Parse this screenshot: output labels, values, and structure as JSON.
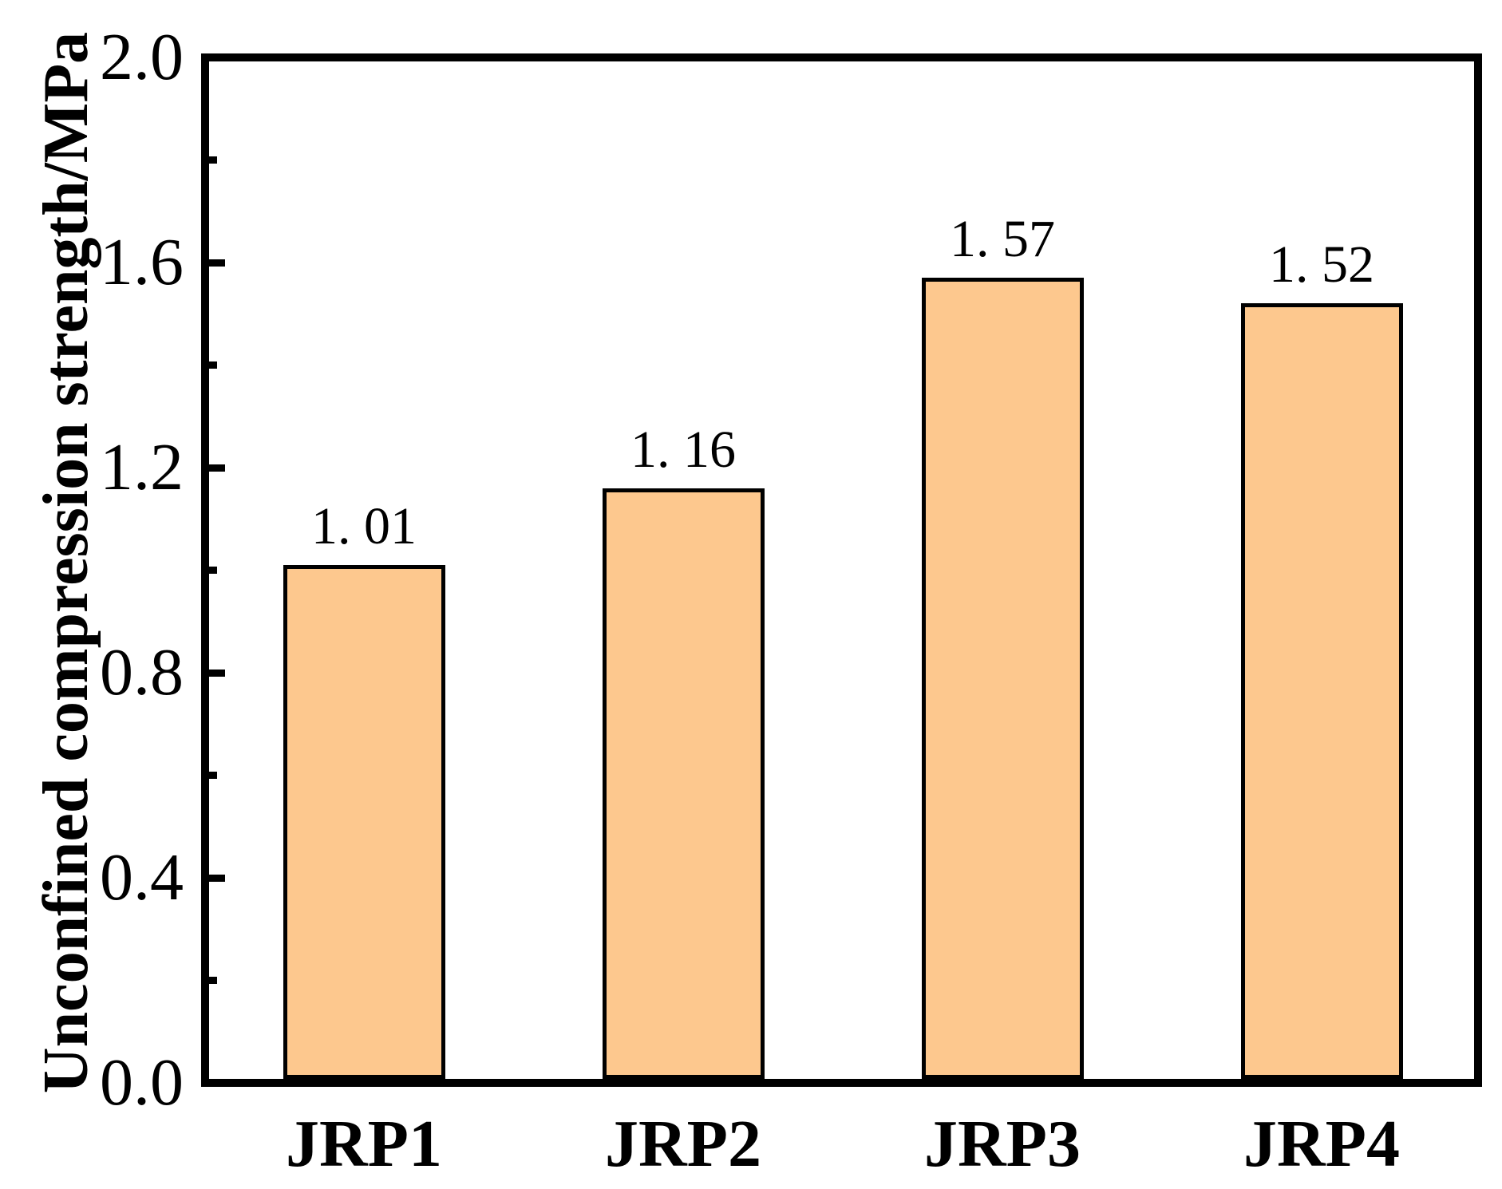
{
  "chart_data": {
    "type": "bar",
    "title": "",
    "categories": [
      "JRP1",
      "JRP2",
      "JRP3",
      "JRP4"
    ],
    "values": [
      1.01,
      1.16,
      1.57,
      1.52
    ],
    "bar_value_labels": [
      "1. 01",
      "1. 16",
      "1. 57",
      "1. 52"
    ],
    "xlabel": "",
    "ylabel": "Unconfined compression strength/MPa",
    "ylim": [
      0.0,
      2.0
    ],
    "ytick_values": [
      0.0,
      0.4,
      0.8,
      1.2,
      1.6,
      2.0
    ],
    "ytick_labels": [
      "0.0",
      "0.4",
      "0.8",
      "1.2",
      "1.6",
      "2.0"
    ],
    "minor_ytick_values": [
      0.2,
      0.6,
      1.0,
      1.4,
      1.8
    ],
    "tick_direction": "in",
    "grid": false,
    "legend": null,
    "colors": {
      "bar_fill": "#FDC88E",
      "bar_edge": "#000000",
      "axis": "#000000",
      "text": "#000000",
      "background": "#FFFFFF"
    }
  }
}
